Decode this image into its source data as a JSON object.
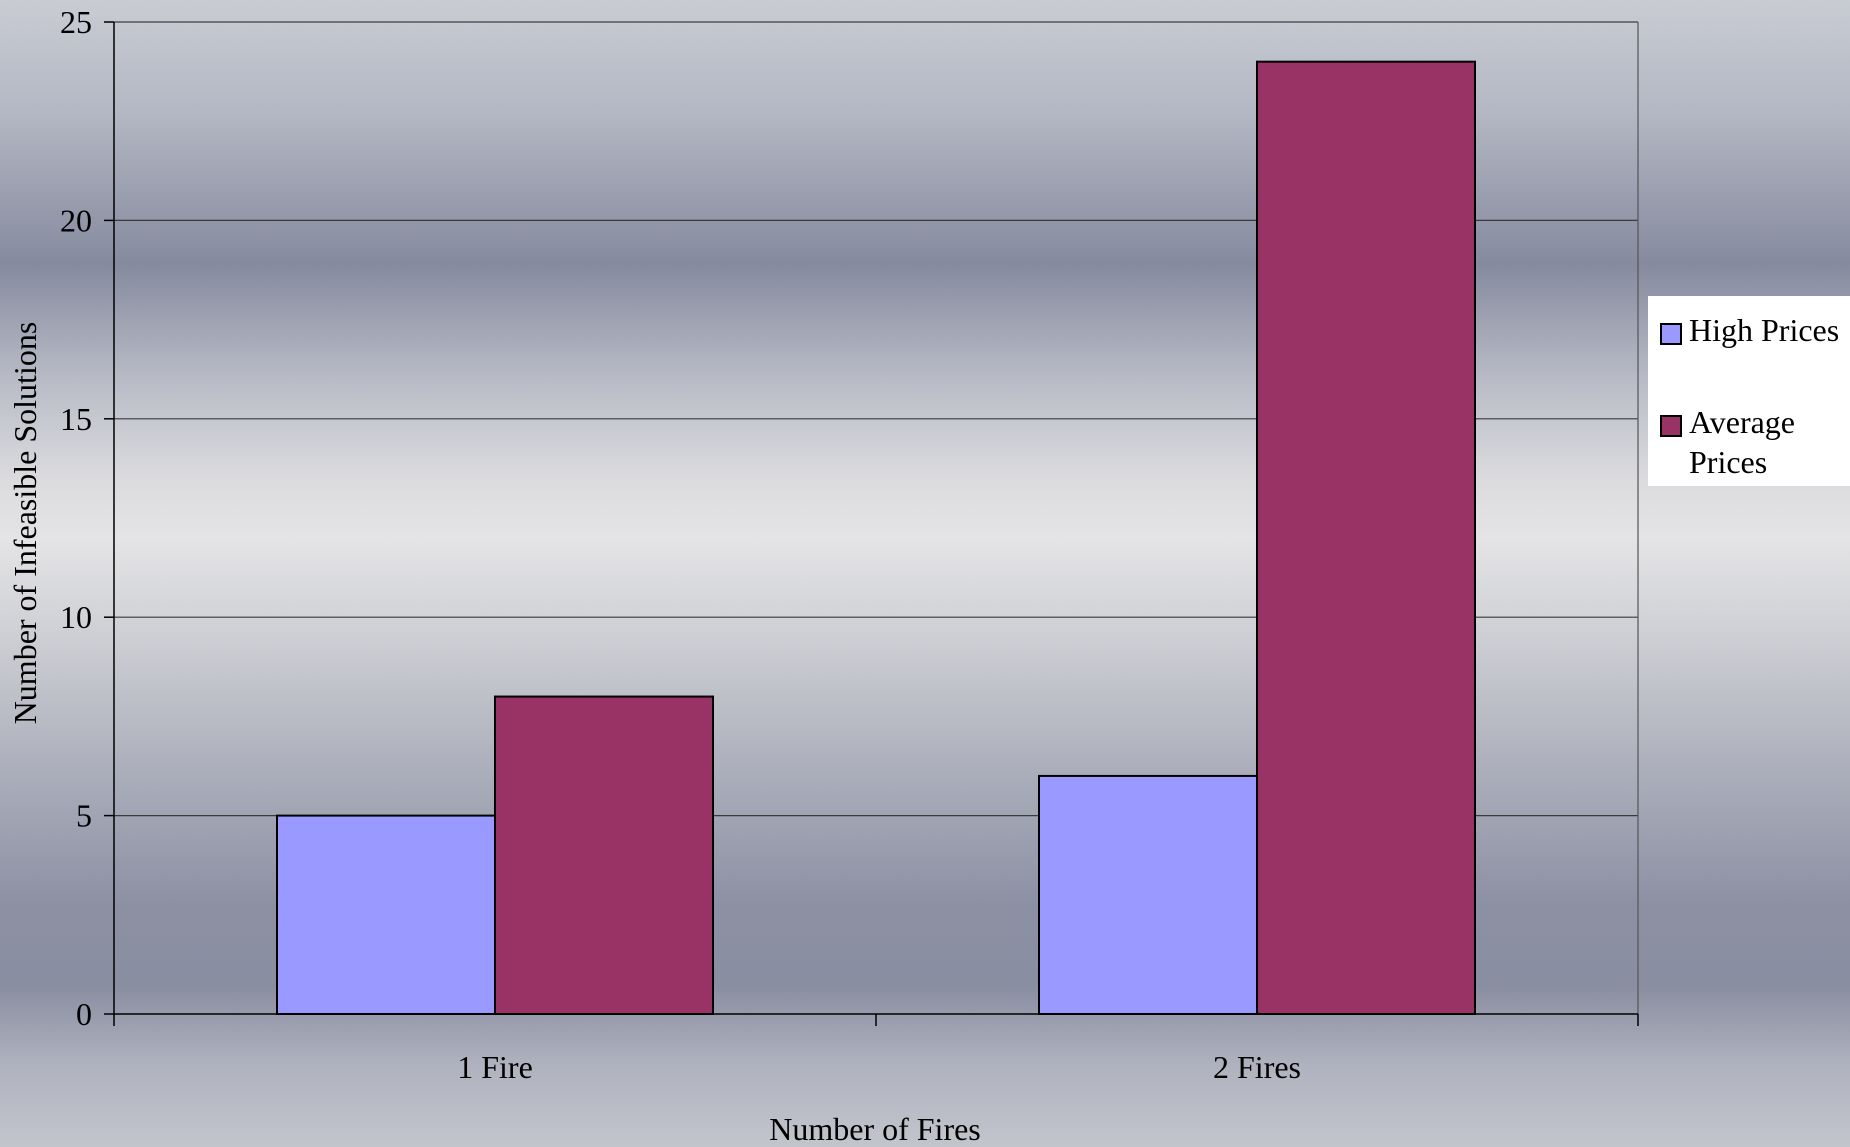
{
  "chart_data": {
    "type": "bar",
    "categories": [
      "1 Fire",
      "2 Fires"
    ],
    "series": [
      {
        "name": "High Prices",
        "values": [
          5,
          6
        ],
        "color": "#9999ff"
      },
      {
        "name": "Average Prices",
        "values": [
          8,
          24
        ],
        "color": "#993366"
      }
    ],
    "xlabel": "Number of Fires",
    "ylabel": "Number of Infeasible Solutions",
    "ylim": [
      0,
      25
    ],
    "yticks": [
      "0",
      "5",
      "10",
      "15",
      "20",
      "25"
    ],
    "grid": true,
    "legend_position": "right"
  }
}
